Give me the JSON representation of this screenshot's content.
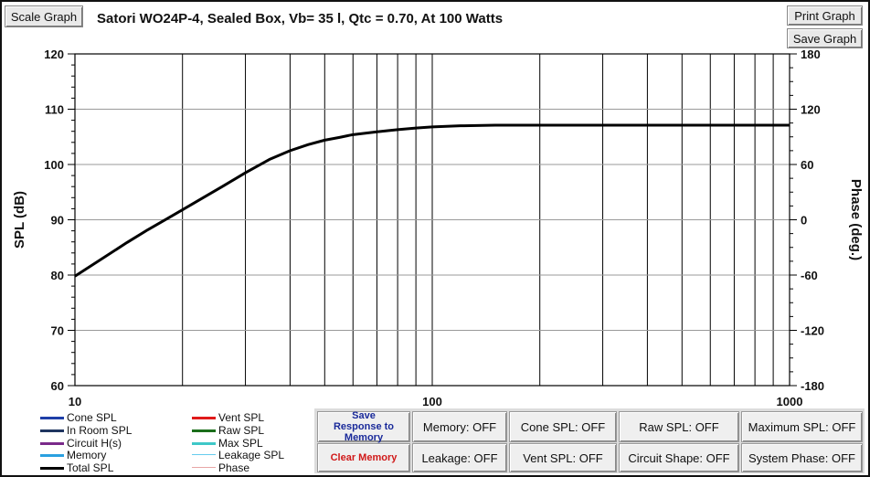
{
  "window": {
    "title": "Satori WO24P-4,  Sealed Box, Vb= 35 l,  Qtc = 0.70,  At 100 Watts"
  },
  "toolbar": {
    "scale_graph": "Scale Graph",
    "print_graph": "Print Graph",
    "save_graph": "Save Graph"
  },
  "chart_data": {
    "type": "line",
    "xscale": "log",
    "xlim": [
      10,
      1000
    ],
    "ylim": [
      60,
      120
    ],
    "y2lim": [
      -180,
      180
    ],
    "xlabel": "",
    "ylabel": "SPL (dB)",
    "y2label": "Phase (deg.)",
    "x_ticks": [
      "10",
      "100",
      "1000"
    ],
    "y_ticks": [
      "120",
      "110",
      "100",
      "90",
      "80",
      "70",
      "60"
    ],
    "y2_ticks": [
      "180",
      "120",
      "60",
      "0",
      "-60",
      "-120",
      "-180"
    ],
    "grid": true,
    "series": [
      {
        "name": "Total SPL",
        "color": "#000000",
        "x": [
          10,
          12,
          14,
          16,
          18,
          20,
          23,
          26,
          30,
          35,
          40,
          45,
          50,
          55,
          60,
          70,
          80,
          90,
          100,
          120,
          150,
          200,
          300,
          500,
          700,
          1000
        ],
        "y": [
          79.8,
          83.1,
          85.9,
          88.2,
          90.1,
          91.8,
          94.1,
          96.1,
          98.5,
          100.9,
          102.5,
          103.6,
          104.4,
          104.9,
          105.4,
          105.9,
          106.3,
          106.6,
          106.8,
          107.0,
          107.1,
          107.1,
          107.1,
          107.1,
          107.1,
          107.1
        ]
      }
    ]
  },
  "legend": {
    "items": [
      {
        "label": "Cone SPL",
        "color": "#1f3fa8"
      },
      {
        "label": "Vent SPL",
        "color": "#e01a1a"
      },
      {
        "label": "In Room SPL",
        "color": "#1f3560"
      },
      {
        "label": "Raw SPL",
        "color": "#1b6e1b"
      },
      {
        "label": "Circuit H(s)",
        "color": "#7a2a8a"
      },
      {
        "label": "Max SPL",
        "color": "#3ec8c8"
      },
      {
        "label": "Memory",
        "color": "#2aa0e0"
      },
      {
        "label": "Leakage SPL",
        "color": "#66ccee"
      },
      {
        "label": "Total SPL",
        "color": "#000000"
      },
      {
        "label": "Phase",
        "color": "#e8a6a6"
      }
    ]
  },
  "buttons": {
    "save_response": "Save Response to Memory",
    "clear_memory": "Clear Memory",
    "memory": "Memory: OFF",
    "leakage": "Leakage: OFF",
    "cone_spl": "Cone SPL: OFF",
    "vent_spl": "Vent SPL: OFF",
    "raw_spl": "Raw SPL: OFF",
    "circuit_shape": "Circuit Shape: OFF",
    "maximum_spl": "Maximum SPL: OFF",
    "system_phase": "System Phase: OFF"
  }
}
